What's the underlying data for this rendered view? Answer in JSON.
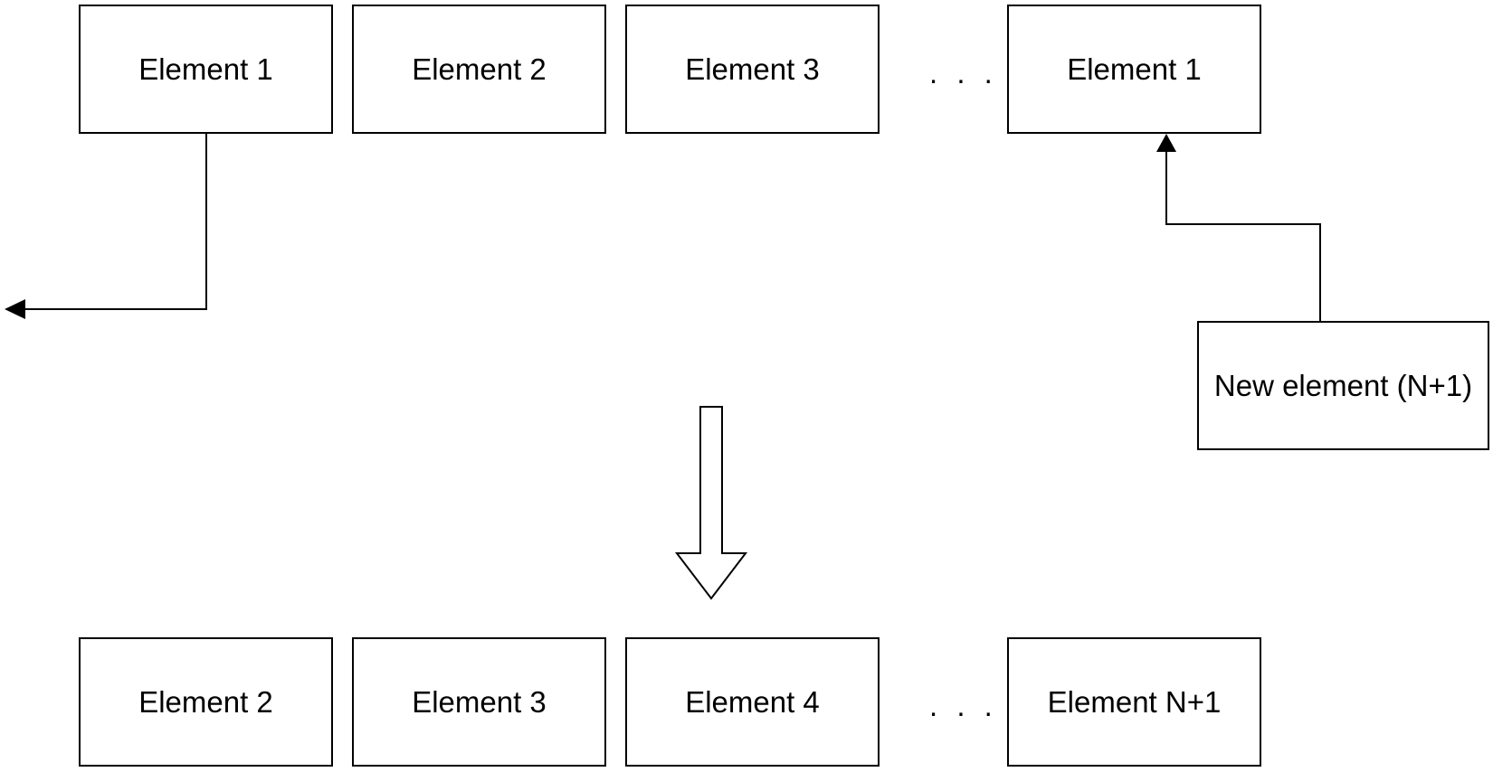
{
  "top_row": {
    "items": [
      "Element 1",
      "Element 2",
      "Element 3",
      "Element 1"
    ],
    "ellipsis": ". . ."
  },
  "new_element": "New element (N+1)",
  "bottom_row": {
    "items": [
      "Element 2",
      "Element 3",
      "Element 4",
      "Element N+1"
    ],
    "ellipsis": ". . ."
  },
  "colors": {
    "line": "#000000",
    "box_fill": "#ffffff",
    "background": "#ffffff"
  }
}
